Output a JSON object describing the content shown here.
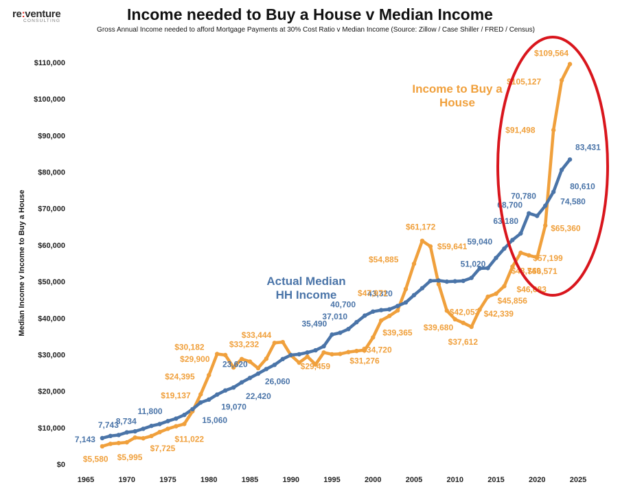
{
  "logo": {
    "brand_a": "re",
    "brand_colon": ":",
    "brand_b": "venture",
    "sub": "CONSULTING"
  },
  "colors": {
    "income_to_buy": "#f0a03c",
    "median_income": "#4a74a8",
    "highlight_ellipse": "#d9161d"
  },
  "chart_data": {
    "type": "line",
    "title": "Income needed to Buy a House v Median Income",
    "subtitle": "Gross Annual Income needed to afford Mortgage Payments at 30% Cost Ratio  v Median Income (Source: Zillow / Case Shiller / FRED / Census)",
    "xlabel": "",
    "ylabel": "Median Income v Income to Buy a House",
    "xlim": [
      1962,
      2029
    ],
    "ylim": [
      0,
      114000
    ],
    "x_ticks": [
      1965,
      1970,
      1975,
      1980,
      1985,
      1990,
      1995,
      2000,
      2005,
      2010,
      2015,
      2020,
      2025
    ],
    "y_ticks": [
      0,
      10000,
      20000,
      30000,
      40000,
      50000,
      60000,
      70000,
      80000,
      90000,
      100000,
      110000
    ],
    "y_tick_labels": [
      "$0",
      "$10,000",
      "$20,000",
      "$30,000",
      "$40,000",
      "$50,000",
      "$60,000",
      "$70,000",
      "$80,000",
      "$90,000",
      "$100,000",
      "$110,000"
    ],
    "grid": false,
    "legend": "none",
    "series": [
      {
        "name": "Income to Buy a House",
        "color": "#f0a03c",
        "x": [
          1967,
          1968,
          1969,
          1970,
          1971,
          1972,
          1973,
          1974,
          1975,
          1976,
          1977,
          1978,
          1979,
          1980,
          1981,
          1982,
          1983,
          1984,
          1985,
          1986,
          1987,
          1988,
          1989,
          1990,
          1991,
          1992,
          1993,
          1994,
          1995,
          1996,
          1997,
          1998,
          1999,
          2000,
          2001,
          2002,
          2003,
          2004,
          2005,
          2006,
          2007,
          2008,
          2009,
          2010,
          2011,
          2012,
          2013,
          2014,
          2015,
          2016,
          2017,
          2018,
          2019,
          2020,
          2021,
          2022,
          2023,
          2024
        ],
        "y": [
          4900,
          5580,
          5800,
          5995,
          7300,
          7100,
          7725,
          8800,
          9700,
          10400,
          11022,
          14500,
          19137,
          24395,
          30182,
          29900,
          26500,
          28800,
          28100,
          26300,
          28900,
          33232,
          33444,
          29800,
          27800,
          29459,
          27300,
          30600,
          30100,
          30200,
          30700,
          31000,
          31276,
          34720,
          39365,
          40600,
          42100,
          47971,
          54885,
          61172,
          59641,
          49300,
          42053,
          39680,
          38700,
          37612,
          42339,
          45856,
          46683,
          48749,
          54100,
          57900,
          57199,
          56571,
          65360,
          91498,
          105127,
          109564
        ]
      },
      {
        "name": "Actual Median HH Income",
        "color": "#4a74a8",
        "x": [
          1967,
          1968,
          1969,
          1970,
          1971,
          1972,
          1973,
          1974,
          1975,
          1976,
          1977,
          1978,
          1979,
          1980,
          1981,
          1982,
          1983,
          1984,
          1985,
          1986,
          1987,
          1988,
          1989,
          1990,
          1991,
          1992,
          1993,
          1994,
          1995,
          1996,
          1997,
          1998,
          1999,
          2000,
          2001,
          2002,
          2003,
          2004,
          2005,
          2006,
          2007,
          2008,
          2009,
          2010,
          2011,
          2012,
          2013,
          2014,
          2015,
          2016,
          2017,
          2018,
          2019,
          2020,
          2021,
          2022,
          2023,
          2024
        ],
        "y": [
          7143,
          7743,
          8000,
          8734,
          9000,
          9700,
          10500,
          11000,
          11800,
          12500,
          13500,
          15060,
          16900,
          17700,
          19070,
          20200,
          21000,
          22420,
          23620,
          24800,
          26060,
          27200,
          28800,
          29900,
          30100,
          30600,
          31200,
          32300,
          35490,
          36000,
          37010,
          38900,
          40700,
          41800,
          42200,
          42400,
          43320,
          44300,
          46300,
          48200,
          50200,
          50300,
          50000,
          50100,
          50200,
          51020,
          53600,
          53700,
          56500,
          59040,
          61400,
          63180,
          68700,
          68000,
          70780,
          74580,
          80610,
          83431
        ]
      }
    ],
    "point_labels": [
      {
        "series": 1,
        "year": 1967,
        "text": "7,143",
        "dx": -40,
        "dy": 6
      },
      {
        "series": 1,
        "year": 1968,
        "text": "7,743",
        "dx": -18,
        "dy": -12
      },
      {
        "series": 1,
        "year": 1970,
        "text": "8,734",
        "dx": -16,
        "dy": -12
      },
      {
        "series": 1,
        "year": 1975,
        "text": "11,800",
        "dx": -44,
        "dy": -10
      },
      {
        "series": 1,
        "year": 1978,
        "text": "15,060",
        "dx": 14,
        "dy": 20
      },
      {
        "series": 1,
        "year": 1981,
        "text": "19,070",
        "dx": 6,
        "dy": 22
      },
      {
        "series": 1,
        "year": 1985,
        "text": "23,620",
        "dx": -40,
        "dy": -16
      },
      {
        "series": 1,
        "year": 1984,
        "text": "22,420",
        "dx": 6,
        "dy": 24
      },
      {
        "series": 1,
        "year": 1987,
        "text": "26,060",
        "dx": -2,
        "dy": 22
      },
      {
        "series": 1,
        "year": 1995,
        "text": "35,490",
        "dx": -44,
        "dy": -12
      },
      {
        "series": 1,
        "year": 1997,
        "text": "37,010",
        "dx": -38,
        "dy": -14
      },
      {
        "series": 1,
        "year": 1999,
        "text": "40,700",
        "dx": -50,
        "dy": -12
      },
      {
        "series": 1,
        "year": 2003,
        "text": "43,320",
        "dx": -44,
        "dy": -14
      },
      {
        "series": 1,
        "year": 2012,
        "text": "51,020",
        "dx": -16,
        "dy": -16
      },
      {
        "series": 1,
        "year": 2016,
        "text": "59,040",
        "dx": -54,
        "dy": -6
      },
      {
        "series": 1,
        "year": 2018,
        "text": "63,180",
        "dx": -40,
        "dy": -14
      },
      {
        "series": 1,
        "year": 2019,
        "text": "68,700",
        "dx": -46,
        "dy": -8
      },
      {
        "series": 1,
        "year": 2021,
        "text": "70,780",
        "dx": -50,
        "dy": -10
      },
      {
        "series": 1,
        "year": 2022,
        "text": "74,580",
        "dx": 10,
        "dy": 18
      },
      {
        "series": 1,
        "year": 2023,
        "text": "80,610",
        "dx": 12,
        "dy": 28
      },
      {
        "series": 1,
        "year": 2024,
        "text": "83,431",
        "dx": 8,
        "dy": -14
      },
      {
        "series": 0,
        "year": 1968,
        "text": "$5,580",
        "dx": -40,
        "dy": 26
      },
      {
        "series": 0,
        "year": 1970,
        "text": "$5,995",
        "dx": -14,
        "dy": 26
      },
      {
        "series": 0,
        "year": 1973,
        "text": "$7,725",
        "dx": -2,
        "dy": 22
      },
      {
        "series": 0,
        "year": 1977,
        "text": "$11,022",
        "dx": -14,
        "dy": 26
      },
      {
        "series": 0,
        "year": 1979,
        "text": "$19,137",
        "dx": -58,
        "dy": 6
      },
      {
        "series": 0,
        "year": 1980,
        "text": "$24,395",
        "dx": -64,
        "dy": 6
      },
      {
        "series": 0,
        "year": 1981,
        "text": "$30,182",
        "dx": -62,
        "dy": -6
      },
      {
        "series": 0,
        "year": 1982,
        "text": "$29,900",
        "dx": -66,
        "dy": 10
      },
      {
        "series": 0,
        "year": 1988,
        "text": "$33,232",
        "dx": -66,
        "dy": 6
      },
      {
        "series": 0,
        "year": 1989,
        "text": "$33,444",
        "dx": -60,
        "dy": -6
      },
      {
        "series": 0,
        "year": 1992,
        "text": "$29,459",
        "dx": -10,
        "dy": 18
      },
      {
        "series": 0,
        "year": 1999,
        "text": "$31,276",
        "dx": -22,
        "dy": 20
      },
      {
        "series": 0,
        "year": 2000,
        "text": "$34,720",
        "dx": -16,
        "dy": 22
      },
      {
        "series": 0,
        "year": 2001,
        "text": "$39,365",
        "dx": 2,
        "dy": 22
      },
      {
        "series": 0,
        "year": 2004,
        "text": "$47,971",
        "dx": -70,
        "dy": 10
      },
      {
        "series": 0,
        "year": 2005,
        "text": "$54,885",
        "dx": -66,
        "dy": -2
      },
      {
        "series": 0,
        "year": 2006,
        "text": "$61,172",
        "dx": -24,
        "dy": -16
      },
      {
        "series": 0,
        "year": 2007,
        "text": "$59,641",
        "dx": 10,
        "dy": 4
      },
      {
        "series": 0,
        "year": 2009,
        "text": "$42,053",
        "dx": 4,
        "dy": 6
      },
      {
        "series": 0,
        "year": 2010,
        "text": "$39,680",
        "dx": -46,
        "dy": 16
      },
      {
        "series": 0,
        "year": 2012,
        "text": "$37,612",
        "dx": -34,
        "dy": 26
      },
      {
        "series": 0,
        "year": 2013,
        "text": "$42,339",
        "dx": 6,
        "dy": 10
      },
      {
        "series": 0,
        "year": 2014,
        "text": "$45,856",
        "dx": 14,
        "dy": 10
      },
      {
        "series": 0,
        "year": 2015,
        "text": "$46,683",
        "dx": 30,
        "dy": -2
      },
      {
        "series": 0,
        "year": 2016,
        "text": "$48,749",
        "dx": 10,
        "dy": -18
      },
      {
        "series": 0,
        "year": 2019,
        "text": "$57,199",
        "dx": 6,
        "dy": 8
      },
      {
        "series": 0,
        "year": 2020,
        "text": "$56,571",
        "dx": -14,
        "dy": 24
      },
      {
        "series": 0,
        "year": 2021,
        "text": "$65,360",
        "dx": 8,
        "dy": 8
      },
      {
        "series": 0,
        "year": 2022,
        "text": "$91,498",
        "dx": -70,
        "dy": 4
      },
      {
        "series": 0,
        "year": 2023,
        "text": "$105,127",
        "dx": -80,
        "dy": 6
      },
      {
        "series": 0,
        "year": 2024,
        "text": "$109,564",
        "dx": -52,
        "dy": -12
      }
    ],
    "annotations": [
      {
        "series": 0,
        "lines": [
          "Income to Buy a",
          "House"
        ]
      },
      {
        "series": 1,
        "lines": [
          "Actual Median",
          "HH Income"
        ]
      }
    ]
  }
}
